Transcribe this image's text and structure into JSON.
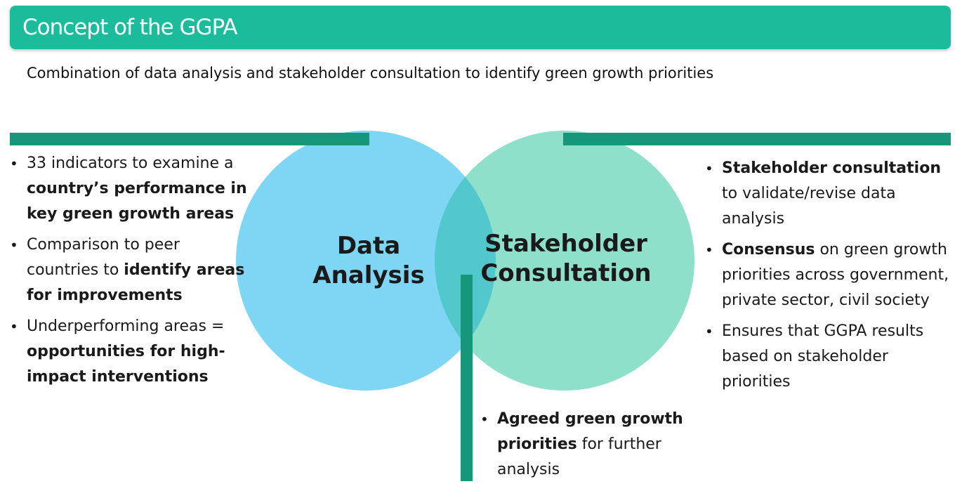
{
  "header": {
    "title": "Concept of the GGPA"
  },
  "subtitle": "Combination of data analysis and stakeholder consultation to identify green growth priorities",
  "colors": {
    "title_bar": "#1bbc9b",
    "accent_bar": "#16977a",
    "left_circle": "#7fd6f4",
    "right_circle": "#8ee0cb",
    "overlap": "#52c8cd"
  },
  "venn": {
    "left_label": [
      "Data",
      "Analysis"
    ],
    "right_label": [
      "Stakeholder",
      "Consultation"
    ]
  },
  "left_bullets": [
    {
      "pre": "33 indicators to examine a ",
      "bold": "country’s performance in key green growth areas",
      "post": ""
    },
    {
      "pre": "Comparison to peer countries to ",
      "bold": "identify areas for improvements",
      "post": ""
    },
    {
      "pre": "Underperforming areas = ",
      "bold": "opportunities for high-impact interventions",
      "post": ""
    }
  ],
  "right_bullets": [
    {
      "pre": "",
      "bold": "Stakeholder consultation",
      "post": " to validate/revise data analysis"
    },
    {
      "pre": "",
      "bold": "Consensus",
      "post": " on green growth priorities across government, private sector, civil society"
    },
    {
      "pre": "Ensures that GGPA results based on stakeholder priorities",
      "bold": "",
      "post": ""
    }
  ],
  "bottom_bullets": [
    {
      "pre": "",
      "bold": "Agreed green growth priorities",
      "post": " for further analysis"
    }
  ]
}
